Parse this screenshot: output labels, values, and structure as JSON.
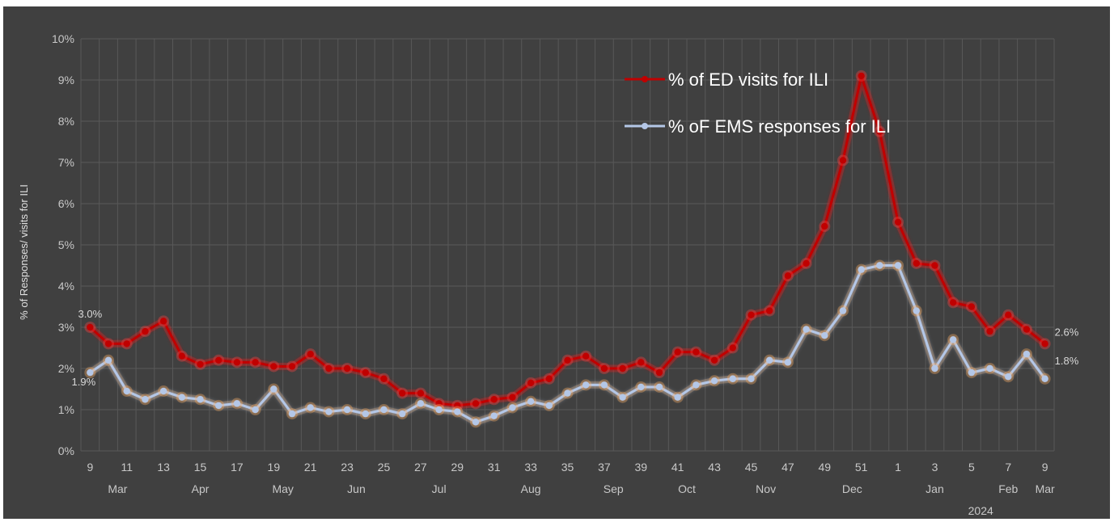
{
  "chart_data": {
    "type": "line",
    "ylabel": "% of Responses/ visits for ILI",
    "ylim": [
      0,
      10
    ],
    "y_ticks": [
      "0%",
      "1%",
      "2%",
      "3%",
      "4%",
      "5%",
      "6%",
      "7%",
      "8%",
      "9%",
      "10%"
    ],
    "x_week_labels": [
      {
        "i": 0,
        "label": "9"
      },
      {
        "i": 2,
        "label": "11"
      },
      {
        "i": 4,
        "label": "13"
      },
      {
        "i": 6,
        "label": "15"
      },
      {
        "i": 8,
        "label": "17"
      },
      {
        "i": 10,
        "label": "19"
      },
      {
        "i": 12,
        "label": "21"
      },
      {
        "i": 14,
        "label": "23"
      },
      {
        "i": 16,
        "label": "25"
      },
      {
        "i": 18,
        "label": "27"
      },
      {
        "i": 20,
        "label": "29"
      },
      {
        "i": 22,
        "label": "31"
      },
      {
        "i": 24,
        "label": "33"
      },
      {
        "i": 26,
        "label": "35"
      },
      {
        "i": 28,
        "label": "37"
      },
      {
        "i": 30,
        "label": "39"
      },
      {
        "i": 32,
        "label": "41"
      },
      {
        "i": 34,
        "label": "43"
      },
      {
        "i": 36,
        "label": "45"
      },
      {
        "i": 38,
        "label": "47"
      },
      {
        "i": 40,
        "label": "49"
      },
      {
        "i": 42,
        "label": "51"
      },
      {
        "i": 44,
        "label": "1"
      },
      {
        "i": 46,
        "label": "3"
      },
      {
        "i": 48,
        "label": "5"
      },
      {
        "i": 50,
        "label": "7"
      },
      {
        "i": 52,
        "label": "9"
      }
    ],
    "x_month_labels": [
      {
        "i": 1.5,
        "label": "Mar"
      },
      {
        "i": 6,
        "label": "Apr"
      },
      {
        "i": 10.5,
        "label": "May"
      },
      {
        "i": 14.5,
        "label": "Jun"
      },
      {
        "i": 19,
        "label": "Jul"
      },
      {
        "i": 24,
        "label": "Aug"
      },
      {
        "i": 28.5,
        "label": "Sep"
      },
      {
        "i": 32.5,
        "label": "Oct"
      },
      {
        "i": 36.8,
        "label": "Nov"
      },
      {
        "i": 41.5,
        "label": "Dec"
      },
      {
        "i": 46,
        "label": "Jan"
      },
      {
        "i": 50,
        "label": "Feb"
      },
      {
        "i": 52,
        "label": "Mar"
      }
    ],
    "year_label": {
      "i": 48.5,
      "label": "2024"
    },
    "series": [
      {
        "name": "% of ED visits for ILI",
        "color": "#c00000",
        "glow": "#ff4444",
        "values": [
          3.0,
          2.6,
          2.6,
          2.9,
          3.15,
          2.3,
          2.1,
          2.2,
          2.15,
          2.15,
          2.05,
          2.05,
          2.35,
          2.0,
          2.0,
          1.9,
          1.75,
          1.4,
          1.4,
          1.15,
          1.1,
          1.15,
          1.25,
          1.3,
          1.65,
          1.75,
          2.2,
          2.3,
          2.0,
          2.0,
          2.15,
          1.9,
          2.4,
          2.4,
          2.2,
          2.5,
          3.3,
          3.4,
          4.25,
          4.55,
          5.45,
          7.05,
          9.1,
          7.75,
          5.55,
          4.55,
          4.5,
          3.6,
          3.5,
          2.9,
          3.3,
          2.95,
          2.6
        ],
        "start_label": "3.0%",
        "end_label": "2.6%"
      },
      {
        "name": "% oF EMS responses for ILI",
        "color": "#b4c7e7",
        "glow": "#ffb060",
        "values": [
          1.9,
          2.2,
          1.45,
          1.25,
          1.45,
          1.3,
          1.25,
          1.1,
          1.15,
          1.0,
          1.5,
          0.9,
          1.05,
          0.95,
          1.0,
          0.9,
          1.0,
          0.9,
          1.15,
          1.0,
          0.95,
          0.7,
          0.85,
          1.05,
          1.2,
          1.1,
          1.4,
          1.6,
          1.6,
          1.3,
          1.55,
          1.55,
          1.3,
          1.6,
          1.7,
          1.75,
          1.75,
          2.2,
          2.15,
          2.95,
          2.8,
          3.4,
          4.4,
          4.5,
          4.5,
          3.4,
          2.0,
          2.7,
          1.9,
          2.0,
          1.8,
          2.35,
          1.75
        ],
        "start_label": "1.9%",
        "end_label": "1.8%"
      }
    ],
    "legend_position": "top-right",
    "grid": true
  }
}
